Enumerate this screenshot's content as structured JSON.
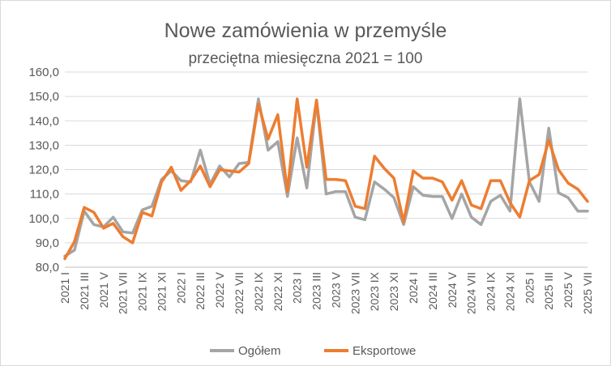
{
  "chart_data": {
    "type": "line",
    "title": "Nowe zamówienia w przemyśle",
    "subtitle": "przeciętna miesięczna 2021 = 100",
    "xlabel": "",
    "ylabel": "",
    "ylim": [
      80,
      160
    ],
    "yticks": [
      80,
      90,
      100,
      110,
      120,
      130,
      140,
      150,
      160
    ],
    "ytick_labels": [
      "80,0",
      "90,0",
      "100,0",
      "110,0",
      "120,0",
      "130,0",
      "140,0",
      "150,0",
      "160,0"
    ],
    "grid": true,
    "legend_position": "bottom",
    "x": [
      "2021 I",
      "2021 II",
      "2021 III",
      "2021 IV",
      "2021 V",
      "2021 VI",
      "2021 VII",
      "2021 VIII",
      "2021 IX",
      "2021 X",
      "2021 XI",
      "2021 XII",
      "2022 I",
      "2022 II",
      "2022 III",
      "2022 IV",
      "2022 V",
      "2022 VI",
      "2022 VII",
      "2022 VIII",
      "2022 IX",
      "2022 X",
      "2022 XI",
      "2022 XII",
      "2023 I",
      "2023 II",
      "2023 III",
      "2023 IV",
      "2023 V",
      "2023 VI",
      "2023 VII",
      "2023 VIII",
      "2023 IX",
      "2023 X",
      "2023 XI",
      "2023 XII",
      "2024 I",
      "2024 II",
      "2024 III",
      "2024 IV",
      "2024 V",
      "2024 VI",
      "2024 VII",
      "2024 VIII",
      "2024 IX",
      "2024 X",
      "2024 XI",
      "2024 XII",
      "2025 I",
      "2025 II",
      "2025 III",
      "2025 IV",
      "2025 V",
      "2025 VI",
      "2025 VII"
    ],
    "x_tick_labels": [
      "2021 I",
      "2021 III",
      "2021 V",
      "2021 VII",
      "2021 IX",
      "2021 XI",
      "2022 I",
      "2022 III",
      "2022 V",
      "2022 VII",
      "2022 IX",
      "2022 XI",
      "2023 I",
      "2023 III",
      "2023 V",
      "2023 VII",
      "2023 IX",
      "2023 XI",
      "2024 I",
      "2024 III",
      "2024 V",
      "2024 VII",
      "2024 IX",
      "2024 XI",
      "2025 I",
      "2025 III",
      "2025 V",
      "2025 VII"
    ],
    "series": [
      {
        "name": "Ogółem",
        "color": "#a5a5a5",
        "values": [
          84.5,
          87.0,
          103.0,
          97.5,
          96.5,
          100.5,
          94.5,
          94.0,
          103.5,
          105.0,
          116.0,
          119.5,
          115.5,
          115.0,
          128.0,
          114.0,
          121.5,
          117.0,
          122.5,
          123.0,
          149.0,
          128.0,
          131.5,
          109.0,
          133.0,
          112.5,
          148.0,
          110.0,
          111.0,
          111.0,
          100.5,
          99.5,
          115.0,
          112.0,
          108.5,
          97.5,
          113.0,
          109.5,
          109.0,
          109.0,
          100.0,
          110.0,
          100.5,
          97.5,
          107.0,
          109.5,
          103.0,
          149.0,
          115.0,
          107.0,
          137.0,
          110.5,
          108.5,
          103.0,
          103.0
        ]
      },
      {
        "name": "Eksportowe",
        "color": "#ed7d31",
        "values": [
          83.5,
          90.5,
          104.5,
          102.5,
          96.0,
          98.0,
          92.5,
          90.0,
          102.5,
          101.0,
          115.0,
          121.0,
          111.5,
          115.5,
          121.5,
          113.0,
          120.0,
          119.5,
          119.0,
          122.5,
          147.0,
          132.5,
          142.5,
          111.0,
          149.0,
          121.0,
          148.5,
          116.0,
          116.0,
          115.5,
          105.0,
          104.0,
          125.5,
          120.5,
          116.5,
          98.5,
          119.5,
          116.5,
          116.5,
          115.0,
          107.5,
          115.5,
          105.5,
          104.0,
          115.5,
          115.5,
          106.5,
          100.5,
          115.5,
          118.0,
          132.0,
          120.0,
          114.5,
          112.0,
          107.0
        ]
      }
    ]
  }
}
